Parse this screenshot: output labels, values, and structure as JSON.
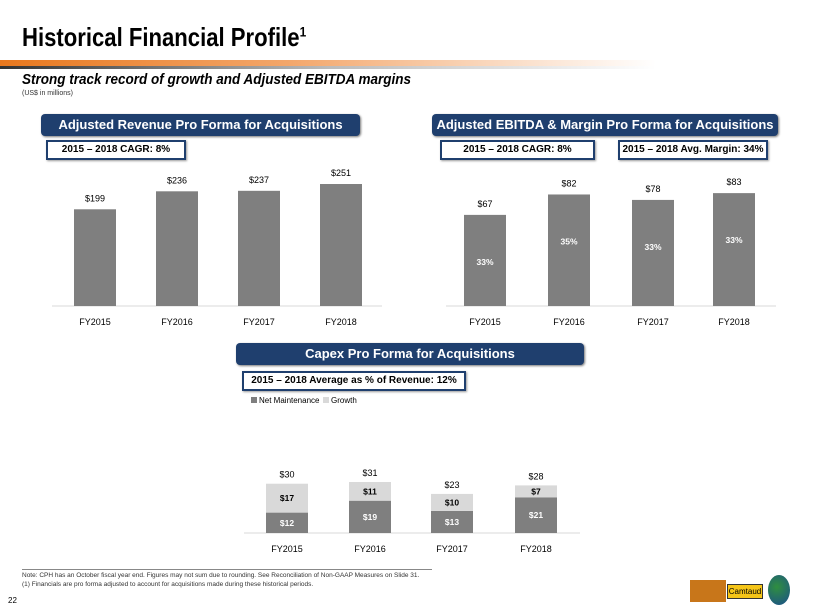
{
  "header": {
    "title": "Historical Financial Profile",
    "title_sup": "1",
    "subtitle": "Strong track record of growth and Adjusted EBITDA margins",
    "units": "(US$ in millions)"
  },
  "panels": {
    "revenue": {
      "title": "Adjusted Revenue Pro Forma for Acquisitions",
      "cagr": "2015 – 2018 CAGR:  8%"
    },
    "ebitda": {
      "title": "Adjusted EBITDA & Margin Pro Forma for Acquisitions",
      "cagr": "2015 – 2018 CAGR:  8%",
      "margin": "2015 – 2018 Avg. Margin:  34%"
    },
    "capex": {
      "title": "Capex Pro Forma for Acquisitions",
      "avg": "2015 – 2018 Average as % of Revenue:  12%"
    }
  },
  "chart_data": [
    {
      "type": "bar",
      "categories": [
        "FY2015",
        "FY2016",
        "FY2017",
        "FY2018"
      ],
      "values": [
        199,
        236,
        237,
        251
      ],
      "labels": [
        "$199",
        "$236",
        "$237",
        "$251"
      ],
      "color": "#7f7f7f"
    },
    {
      "type": "bar",
      "categories": [
        "FY2015",
        "FY2016",
        "FY2017",
        "FY2018"
      ],
      "values": [
        67,
        82,
        78,
        83
      ],
      "labels": [
        "$67",
        "$82",
        "$78",
        "$83"
      ],
      "margins": [
        "33%",
        "35%",
        "33%",
        "33%"
      ],
      "color": "#7f7f7f"
    },
    {
      "type": "bar",
      "stacked": true,
      "categories": [
        "FY2015",
        "FY2016",
        "FY2017",
        "FY2018"
      ],
      "legend": "top-left",
      "series": [
        {
          "name": "Net Maintenance",
          "values": [
            12,
            19,
            13,
            21
          ],
          "labels": [
            "$12",
            "$19",
            "$13",
            "$21"
          ],
          "color": "#7f7f7f"
        },
        {
          "name": "Growth",
          "values": [
            17,
            11,
            10,
            7
          ],
          "labels": [
            "$17",
            "$11",
            "$10",
            "$7"
          ],
          "color": "#d9d9d9"
        }
      ],
      "totals": [
        "$30",
        "$31",
        "$23",
        "$28"
      ]
    }
  ],
  "footer": {
    "note1": "Note: CPH has an October fiscal year end. Figures may not sum due to rounding. See Reconciliation of Non-GAAP Measures on Slide 31.",
    "note2": "(1) Financials are pro forma adjusted to account for acquisitions made during these historical periods.",
    "page": "22"
  }
}
